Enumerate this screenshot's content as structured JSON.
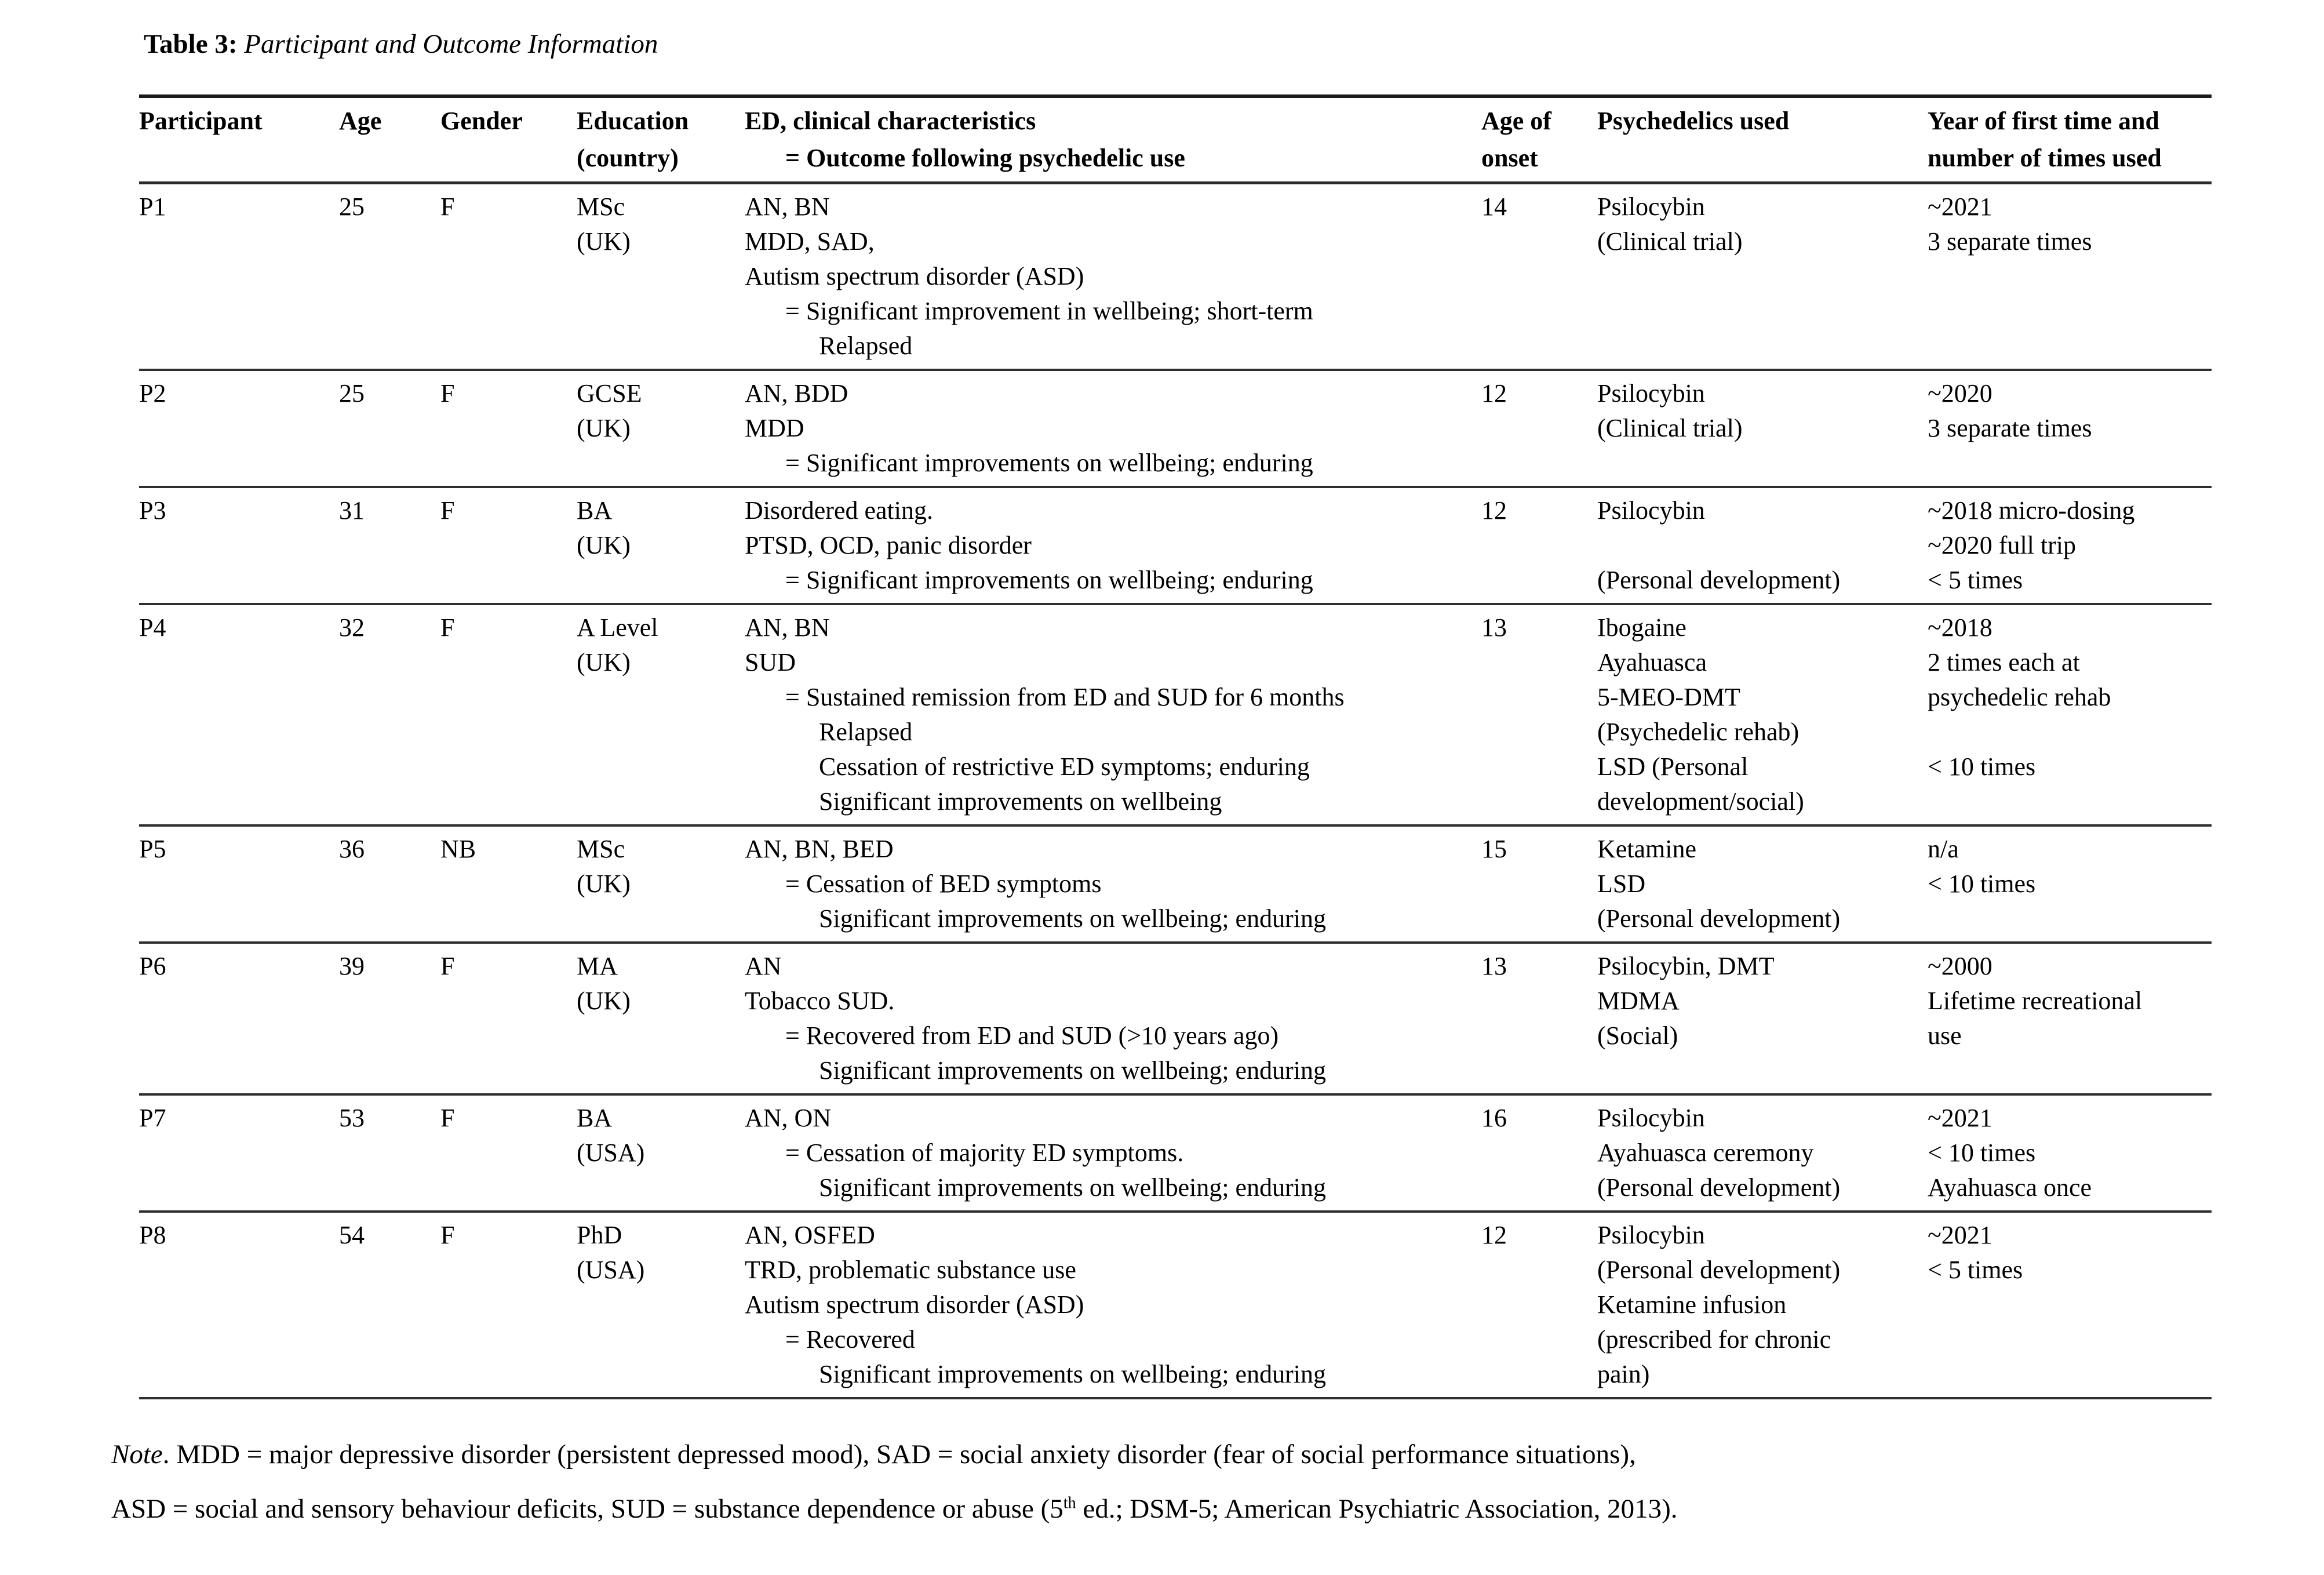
{
  "title": {
    "segments": [
      {
        "text": "Table 3:",
        "bold": true
      },
      {
        "text": " Participant and Outcome Information",
        "italic": true
      }
    ]
  },
  "table": {
    "header": {
      "participant": [
        {
          "t": "Participant"
        }
      ],
      "age": [
        {
          "t": "Age"
        }
      ],
      "gender": [
        {
          "t": "Gender"
        }
      ],
      "education": [
        {
          "t": "Education"
        },
        {
          "t": "(country)"
        }
      ],
      "ed": [
        {
          "t": "ED, clinical characteristics"
        },
        {
          "t": "= Outcome following psychedelic use",
          "i": 1
        }
      ],
      "onset": [
        {
          "t": "Age of"
        },
        {
          "t": "onset"
        }
      ],
      "psychedelics": [
        {
          "t": "Psychedelics used"
        }
      ],
      "year": [
        {
          "t": "Year of first time and"
        },
        {
          "t": "number of times used"
        }
      ]
    },
    "rows": [
      {
        "participant": [
          {
            "t": "P1"
          }
        ],
        "age": [
          {
            "t": "25"
          }
        ],
        "gender": [
          {
            "t": "F"
          }
        ],
        "education": [
          {
            "t": "MSc"
          },
          {
            "t": "(UK)"
          }
        ],
        "ed": [
          {
            "t": "AN, BN"
          },
          {
            "t": "MDD, SAD,"
          },
          {
            "t": "Autism spectrum disorder (ASD)"
          },
          {
            "t": "= Significant improvement in wellbeing; short-term",
            "i": 1
          },
          {
            "t": "Relapsed",
            "i": 2
          }
        ],
        "onset": [
          {
            "t": "14"
          }
        ],
        "psychedelics": [
          {
            "t": "Psilocybin"
          },
          {
            "t": "(Clinical trial)"
          }
        ],
        "year": [
          {
            "t": "~2021"
          },
          {
            "t": "3 separate times"
          }
        ]
      },
      {
        "participant": [
          {
            "t": "P2"
          }
        ],
        "age": [
          {
            "t": "25"
          }
        ],
        "gender": [
          {
            "t": "F"
          }
        ],
        "education": [
          {
            "t": "GCSE"
          },
          {
            "t": "(UK)"
          }
        ],
        "ed": [
          {
            "t": "AN, BDD"
          },
          {
            "t": "MDD"
          },
          {
            "t": "= Significant improvements on wellbeing; enduring",
            "i": 1
          }
        ],
        "onset": [
          {
            "t": "12"
          }
        ],
        "psychedelics": [
          {
            "t": "Psilocybin"
          },
          {
            "t": "(Clinical trial)"
          }
        ],
        "year": [
          {
            "t": "~2020"
          },
          {
            "t": "3 separate times"
          }
        ]
      },
      {
        "participant": [
          {
            "t": "P3"
          }
        ],
        "age": [
          {
            "t": "31"
          }
        ],
        "gender": [
          {
            "t": "F"
          }
        ],
        "education": [
          {
            "t": "BA"
          },
          {
            "t": "(UK)"
          }
        ],
        "ed": [
          {
            "t": "Disordered eating."
          },
          {
            "t": "PTSD, OCD, panic disorder"
          },
          {
            "t": "= Significant improvements on wellbeing; enduring",
            "i": 1
          }
        ],
        "onset": [
          {
            "t": "12"
          }
        ],
        "psychedelics": [
          {
            "t": "Psilocybin"
          },
          {
            "t": ""
          },
          {
            "t": "(Personal development)"
          }
        ],
        "year": [
          {
            "t": "~2018 micro-dosing"
          },
          {
            "t": "~2020 full trip"
          },
          {
            "t": "< 5 times"
          }
        ]
      },
      {
        "participant": [
          {
            "t": "P4"
          }
        ],
        "age": [
          {
            "t": "32"
          }
        ],
        "gender": [
          {
            "t": "F"
          }
        ],
        "education": [
          {
            "t": "A Level"
          },
          {
            "t": "(UK)"
          }
        ],
        "ed": [
          {
            "t": "AN, BN"
          },
          {
            "t": "SUD"
          },
          {
            "t": "= Sustained remission from ED and SUD for 6 months",
            "i": 1
          },
          {
            "t": "Relapsed",
            "i": 2
          },
          {
            "t": "Cessation of restrictive ED symptoms; enduring",
            "i": 2
          },
          {
            "t": "Significant improvements on wellbeing",
            "i": 2
          }
        ],
        "onset": [
          {
            "t": "13"
          }
        ],
        "psychedelics": [
          {
            "t": "Ibogaine"
          },
          {
            "t": "Ayahuasca"
          },
          {
            "t": "5-MEO-DMT"
          },
          {
            "t": "(Psychedelic rehab)"
          },
          {
            "t": "LSD (Personal"
          },
          {
            "t": "development/social)"
          }
        ],
        "year": [
          {
            "t": "~2018"
          },
          {
            "t": "2 times each at"
          },
          {
            "t": "psychedelic rehab"
          },
          {
            "t": ""
          },
          {
            "t": "< 10 times"
          }
        ]
      },
      {
        "participant": [
          {
            "t": "P5"
          }
        ],
        "age": [
          {
            "t": "36"
          }
        ],
        "gender": [
          {
            "t": "NB"
          }
        ],
        "education": [
          {
            "t": "MSc"
          },
          {
            "t": "(UK)"
          }
        ],
        "ed": [
          {
            "t": "AN, BN, BED"
          },
          {
            "t": "= Cessation of BED symptoms",
            "i": 1
          },
          {
            "t": "Significant improvements on wellbeing; enduring",
            "i": 2
          }
        ],
        "onset": [
          {
            "t": "15"
          }
        ],
        "psychedelics": [
          {
            "t": "Ketamine"
          },
          {
            "t": "LSD"
          },
          {
            "t": "(Personal development)"
          }
        ],
        "year": [
          {
            "t": "n/a"
          },
          {
            "t": "< 10 times"
          }
        ]
      },
      {
        "participant": [
          {
            "t": "P6"
          }
        ],
        "age": [
          {
            "t": "39"
          }
        ],
        "gender": [
          {
            "t": "F"
          }
        ],
        "education": [
          {
            "t": "MA"
          },
          {
            "t": "(UK)"
          }
        ],
        "ed": [
          {
            "t": "AN"
          },
          {
            "t": "Tobacco SUD."
          },
          {
            "t": "= Recovered from ED and SUD (>10 years ago)",
            "i": 1
          },
          {
            "t": "Significant improvements on wellbeing; enduring",
            "i": 2
          }
        ],
        "onset": [
          {
            "t": "13"
          }
        ],
        "psychedelics": [
          {
            "t": "Psilocybin, DMT"
          },
          {
            "t": "MDMA"
          },
          {
            "t": "(Social)"
          }
        ],
        "year": [
          {
            "t": "~2000"
          },
          {
            "t": "Lifetime recreational"
          },
          {
            "t": "use"
          }
        ]
      },
      {
        "participant": [
          {
            "t": "P7"
          }
        ],
        "age": [
          {
            "t": "53"
          }
        ],
        "gender": [
          {
            "t": "F"
          }
        ],
        "education": [
          {
            "t": "BA"
          },
          {
            "t": "(USA)"
          }
        ],
        "ed": [
          {
            "t": "AN, ON"
          },
          {
            "t": "= Cessation of majority ED symptoms.",
            "i": 1
          },
          {
            "t": "Significant improvements on wellbeing; enduring",
            "i": 2
          }
        ],
        "onset": [
          {
            "t": "16"
          }
        ],
        "psychedelics": [
          {
            "t": "Psilocybin"
          },
          {
            "t": "Ayahuasca ceremony"
          },
          {
            "t": "(Personal development)"
          }
        ],
        "year": [
          {
            "t": "~2021"
          },
          {
            "t": "< 10 times"
          },
          {
            "t": "Ayahuasca once"
          }
        ]
      },
      {
        "participant": [
          {
            "t": "P8"
          }
        ],
        "age": [
          {
            "t": "54"
          }
        ],
        "gender": [
          {
            "t": "F"
          }
        ],
        "education": [
          {
            "t": "PhD"
          },
          {
            "t": "(USA)"
          }
        ],
        "ed": [
          {
            "t": "AN, OSFED"
          },
          {
            "t": "TRD, problematic substance use"
          },
          {
            "t": "Autism spectrum disorder (ASD)"
          },
          {
            "t": "= Recovered",
            "i": 1
          },
          {
            "t": "Significant improvements on wellbeing; enduring",
            "i": 2
          }
        ],
        "onset": [
          {
            "t": "12"
          }
        ],
        "psychedelics": [
          {
            "t": "Psilocybin"
          },
          {
            "t": "(Personal development)"
          },
          {
            "t": "Ketamine infusion"
          },
          {
            "t": "(prescribed for chronic"
          },
          {
            "t": "pain)"
          }
        ],
        "year": [
          {
            "t": "~2021"
          },
          {
            "t": "< 5 times"
          }
        ]
      }
    ]
  },
  "note": {
    "line1": [
      {
        "text": "Note",
        "italic": true
      },
      {
        "text": ". MDD = major depressive disorder (persistent depressed mood), SAD = social anxiety disorder (fear of social performance situations),"
      }
    ],
    "line2": [
      {
        "text": "ASD = social and sensory behaviour deficits, SUD = substance dependence or abuse (5"
      },
      {
        "text": "th",
        "sup": true
      },
      {
        "text": " ed.; DSM-5; American Psychiatric Association, 2013)."
      }
    ]
  }
}
